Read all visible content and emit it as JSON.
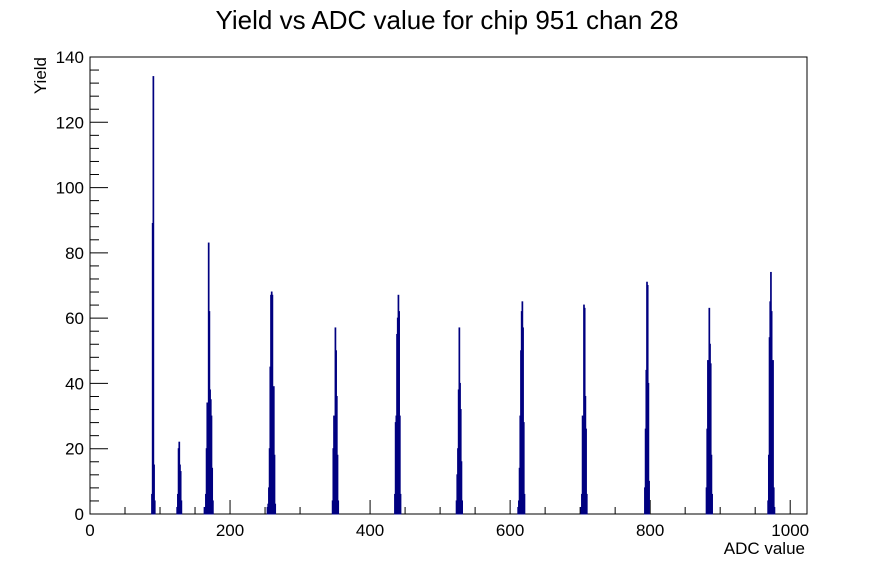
{
  "chart_data": {
    "type": "histogram",
    "title": "Yield vs ADC value for chip 951 chan 28",
    "xlabel": "ADC value",
    "ylabel": "Yield",
    "xlim": [
      0,
      1024
    ],
    "ylim": [
      0,
      140
    ],
    "x_ticks": [
      0,
      200,
      400,
      600,
      800,
      1000
    ],
    "y_ticks": [
      0,
      20,
      40,
      60,
      80,
      100,
      120,
      140
    ],
    "bin_width": 1,
    "grid": false,
    "line_color": "#000080",
    "bins": [
      [
        88,
        6
      ],
      [
        89,
        89
      ],
      [
        90,
        134
      ],
      [
        91,
        15
      ],
      [
        92,
        4
      ],
      [
        124,
        2
      ],
      [
        125,
        6
      ],
      [
        126,
        20
      ],
      [
        127,
        22
      ],
      [
        128,
        15
      ],
      [
        129,
        13
      ],
      [
        130,
        4
      ],
      [
        163,
        2
      ],
      [
        165,
        6
      ],
      [
        166,
        20
      ],
      [
        167,
        34
      ],
      [
        168,
        30
      ],
      [
        169,
        83
      ],
      [
        170,
        62
      ],
      [
        171,
        38
      ],
      [
        172,
        35
      ],
      [
        173,
        30
      ],
      [
        174,
        14
      ],
      [
        175,
        4
      ],
      [
        253,
        2
      ],
      [
        254,
        3
      ],
      [
        255,
        8
      ],
      [
        256,
        20
      ],
      [
        257,
        45
      ],
      [
        258,
        67
      ],
      [
        259,
        68
      ],
      [
        260,
        67
      ],
      [
        261,
        22
      ],
      [
        262,
        39
      ],
      [
        263,
        18
      ],
      [
        264,
        3
      ],
      [
        346,
        4
      ],
      [
        347,
        20
      ],
      [
        348,
        30
      ],
      [
        349,
        25
      ],
      [
        350,
        57
      ],
      [
        351,
        50
      ],
      [
        352,
        36
      ],
      [
        353,
        18
      ],
      [
        354,
        4
      ],
      [
        435,
        6
      ],
      [
        436,
        28
      ],
      [
        437,
        30
      ],
      [
        438,
        55
      ],
      [
        439,
        60
      ],
      [
        440,
        67
      ],
      [
        441,
        62
      ],
      [
        442,
        30
      ],
      [
        443,
        6
      ],
      [
        523,
        4
      ],
      [
        524,
        12
      ],
      [
        525,
        20
      ],
      [
        526,
        38
      ],
      [
        527,
        57
      ],
      [
        528,
        40
      ],
      [
        529,
        32
      ],
      [
        530,
        16
      ],
      [
        531,
        4
      ],
      [
        611,
        2
      ],
      [
        612,
        4
      ],
      [
        613,
        14
      ],
      [
        614,
        30
      ],
      [
        615,
        50
      ],
      [
        616,
        62
      ],
      [
        617,
        65
      ],
      [
        618,
        57
      ],
      [
        619,
        28
      ],
      [
        620,
        6
      ],
      [
        701,
        2
      ],
      [
        702,
        6
      ],
      [
        703,
        30
      ],
      [
        704,
        28
      ],
      [
        705,
        64
      ],
      [
        706,
        63
      ],
      [
        707,
        36
      ],
      [
        708,
        26
      ],
      [
        709,
        6
      ],
      [
        792,
        8
      ],
      [
        793,
        26
      ],
      [
        794,
        44
      ],
      [
        795,
        71
      ],
      [
        796,
        70
      ],
      [
        797,
        40
      ],
      [
        798,
        10
      ],
      [
        880,
        8
      ],
      [
        881,
        26
      ],
      [
        882,
        47
      ],
      [
        883,
        42
      ],
      [
        884,
        63
      ],
      [
        885,
        52
      ],
      [
        886,
        46
      ],
      [
        887,
        18
      ],
      [
        888,
        6
      ],
      [
        968,
        4
      ],
      [
        969,
        18
      ],
      [
        970,
        54
      ],
      [
        971,
        65
      ],
      [
        972,
        74
      ],
      [
        973,
        62
      ],
      [
        974,
        24
      ],
      [
        975,
        47
      ],
      [
        976,
        8
      ],
      [
        977,
        2
      ]
    ]
  }
}
